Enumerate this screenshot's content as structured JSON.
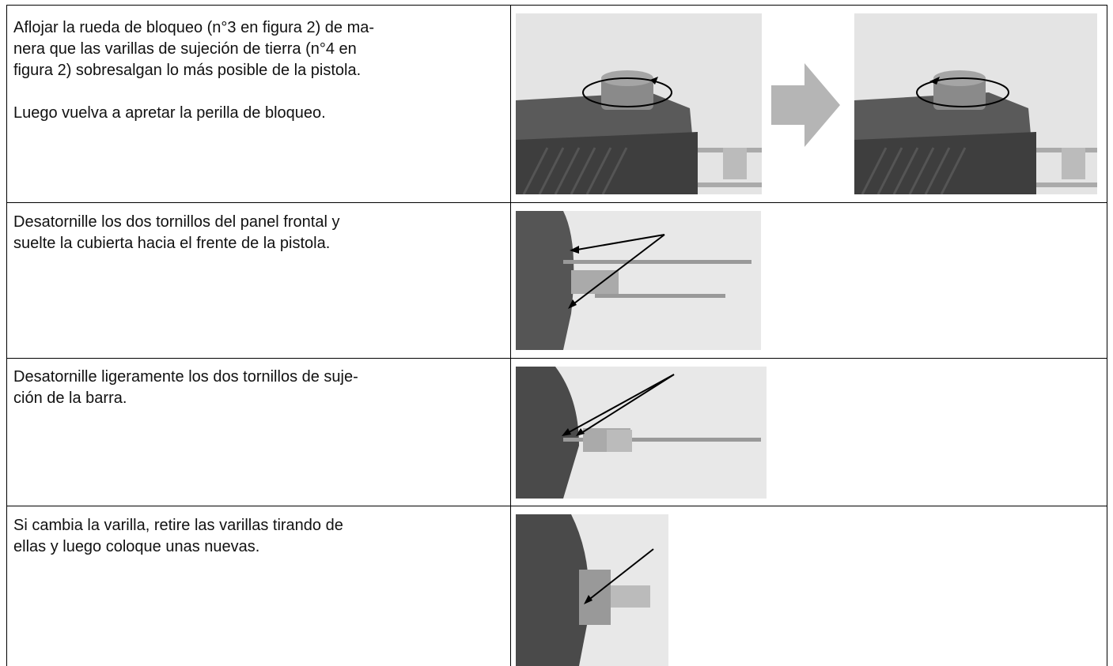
{
  "table": {
    "rows": [
      {
        "paragraphs": [
          [
            "Aflojar la rueda de bloqueo (n°3 en figura 2) de ma-",
            "nera que las varillas de sujeción de tierra (n°4 en",
            "figura 2) sobresalgan lo más posible de la pistola."
          ],
          [
            "Luego vuelva a apretar la perilla de bloqueo."
          ]
        ]
      },
      {
        "paragraphs": [
          [
            "Desatornille los dos tornillos del panel frontal y",
            "suelte la cubierta hacia el frente de la pistola."
          ]
        ]
      },
      {
        "paragraphs": [
          [
            "Desatornille ligeramente los dos tornillos de suje-",
            "ción de la barra."
          ]
        ]
      },
      {
        "paragraphs": [
          [
            "Si cambia la varilla, retire las varillas tirando de",
            "ellas y luego coloque unas nuevas."
          ]
        ]
      }
    ]
  }
}
